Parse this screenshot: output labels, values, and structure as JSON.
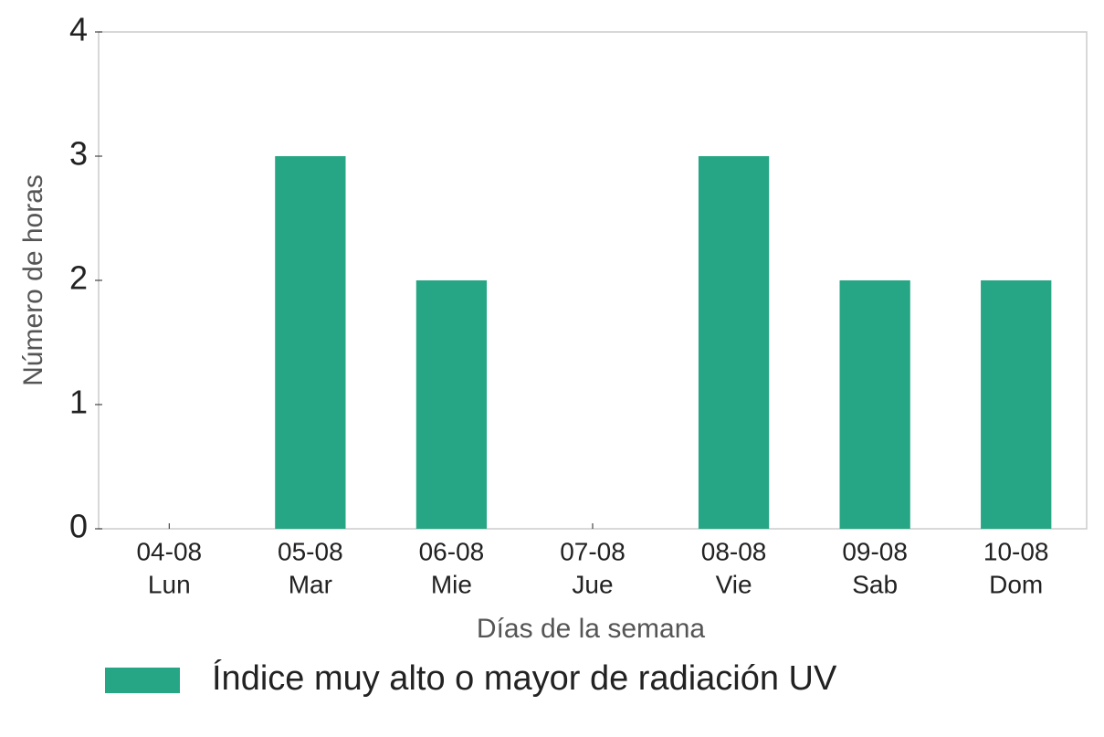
{
  "chart_data": {
    "type": "bar",
    "x_label": "Días de la semana",
    "y_label": "Número de horas",
    "categories": [
      [
        "04-08",
        "Lun"
      ],
      [
        "05-08",
        "Mar"
      ],
      [
        "06-08",
        "Mie"
      ],
      [
        "07-08",
        "Jue"
      ],
      [
        "08-08",
        "Vie"
      ],
      [
        "09-08",
        "Sab"
      ],
      [
        "10-08",
        "Dom"
      ]
    ],
    "series": [
      {
        "name": "Índice muy alto o mayor de radiación UV",
        "color": "#26a684",
        "values": [
          0,
          3,
          2,
          0,
          3,
          2,
          2
        ]
      }
    ],
    "ylim": [
      0,
      4
    ],
    "yticks": [
      0,
      1,
      2,
      3,
      4
    ],
    "grid": false,
    "legend": "bottom"
  }
}
